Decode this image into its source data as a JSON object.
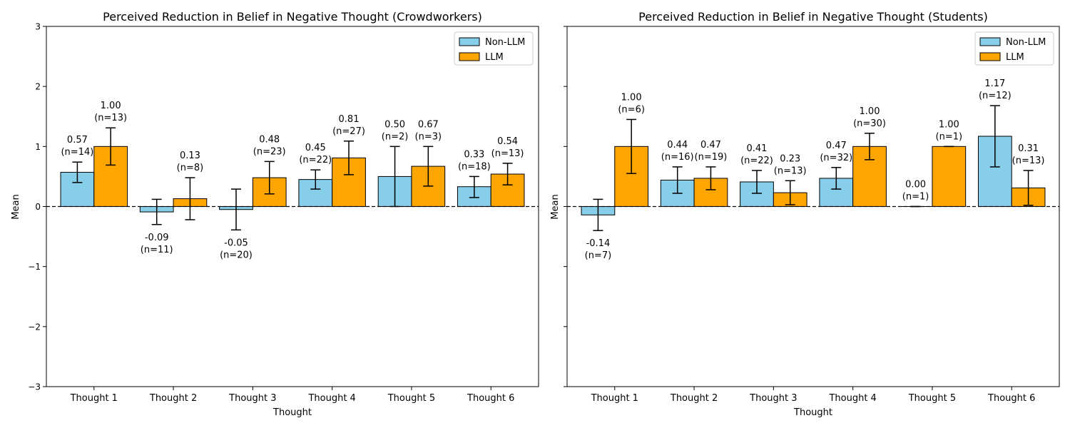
{
  "chart_data": [
    {
      "type": "bar",
      "title": "Perceived Reduction in Belief in Negative Thought (Crowdworkers)",
      "xlabel": "Thought",
      "ylabel": "Mean",
      "ylim": [
        -3,
        3
      ],
      "yticks": [
        -3,
        -2,
        -1,
        0,
        1,
        2,
        3
      ],
      "ytick_labels": [
        "−3",
        "−2",
        "−1",
        "0",
        "1",
        "2",
        "3"
      ],
      "categories": [
        "Thought 1",
        "Thought 2",
        "Thought 3",
        "Thought 4",
        "Thought 5",
        "Thought 6"
      ],
      "legend_position": "top-right",
      "series": [
        {
          "name": "Non-LLM",
          "color": "#87ceeb",
          "values": [
            0.57,
            -0.09,
            -0.05,
            0.45,
            0.5,
            0.33
          ],
          "err_low": [
            0.4,
            -0.3,
            -0.39,
            0.29,
            0.0,
            0.15
          ],
          "err_high": [
            0.74,
            0.12,
            0.29,
            0.61,
            1.0,
            0.5
          ],
          "labels": [
            "0.57",
            "-0.09",
            "-0.05",
            "0.45",
            "0.50",
            "0.33"
          ],
          "n_labels": [
            "(n=14)",
            "(n=11)",
            "(n=20)",
            "(n=22)",
            "(n=2)",
            "(n=18)"
          ]
        },
        {
          "name": "LLM",
          "color": "#ffa500",
          "values": [
            1.0,
            0.13,
            0.48,
            0.81,
            0.67,
            0.54
          ],
          "err_low": [
            0.69,
            -0.22,
            0.21,
            0.53,
            0.34,
            0.36
          ],
          "err_high": [
            1.31,
            0.48,
            0.75,
            1.09,
            1.0,
            0.72
          ],
          "labels": [
            "1.00",
            "0.13",
            "0.48",
            "0.81",
            "0.67",
            "0.54"
          ],
          "n_labels": [
            "(n=13)",
            "(n=8)",
            "(n=23)",
            "(n=27)",
            "(n=3)",
            "(n=13)"
          ]
        }
      ]
    },
    {
      "type": "bar",
      "title": "Perceived Reduction in Belief in Negative Thought (Students)",
      "xlabel": "Thought",
      "ylabel": "Mean",
      "ylim": [
        -3,
        3
      ],
      "yticks": [
        -3,
        -2,
        -1,
        0,
        1,
        2,
        3
      ],
      "ytick_labels": [
        "",
        "",
        "",
        "",
        "",
        "",
        ""
      ],
      "categories": [
        "Thought 1",
        "Thought 2",
        "Thought 3",
        "Thought 4",
        "Thought 5",
        "Thought 6"
      ],
      "legend_position": "top-right",
      "series": [
        {
          "name": "Non-LLM",
          "color": "#87ceeb",
          "values": [
            -0.14,
            0.44,
            0.41,
            0.47,
            0.0,
            1.17
          ],
          "err_low": [
            -0.4,
            0.22,
            0.22,
            0.29,
            0.0,
            0.66
          ],
          "err_high": [
            0.12,
            0.66,
            0.6,
            0.65,
            0.0,
            1.68
          ],
          "labels": [
            "-0.14",
            "0.44",
            "0.41",
            "0.47",
            "0.00",
            "1.17"
          ],
          "n_labels": [
            "(n=7)",
            "(n=16)",
            "(n=22)",
            "(n=32)",
            "(n=1)",
            "(n=12)"
          ]
        },
        {
          "name": "LLM",
          "color": "#ffa500",
          "values": [
            1.0,
            0.47,
            0.23,
            1.0,
            1.0,
            0.31
          ],
          "err_low": [
            0.55,
            0.28,
            0.03,
            0.78,
            1.0,
            0.02
          ],
          "err_high": [
            1.45,
            0.66,
            0.43,
            1.22,
            1.0,
            0.6
          ],
          "labels": [
            "1.00",
            "0.47",
            "0.23",
            "1.00",
            "1.00",
            "0.31"
          ],
          "n_labels": [
            "(n=6)",
            "(n=19)",
            "(n=13)",
            "(n=30)",
            "(n=1)",
            "(n=13)"
          ]
        }
      ]
    }
  ]
}
